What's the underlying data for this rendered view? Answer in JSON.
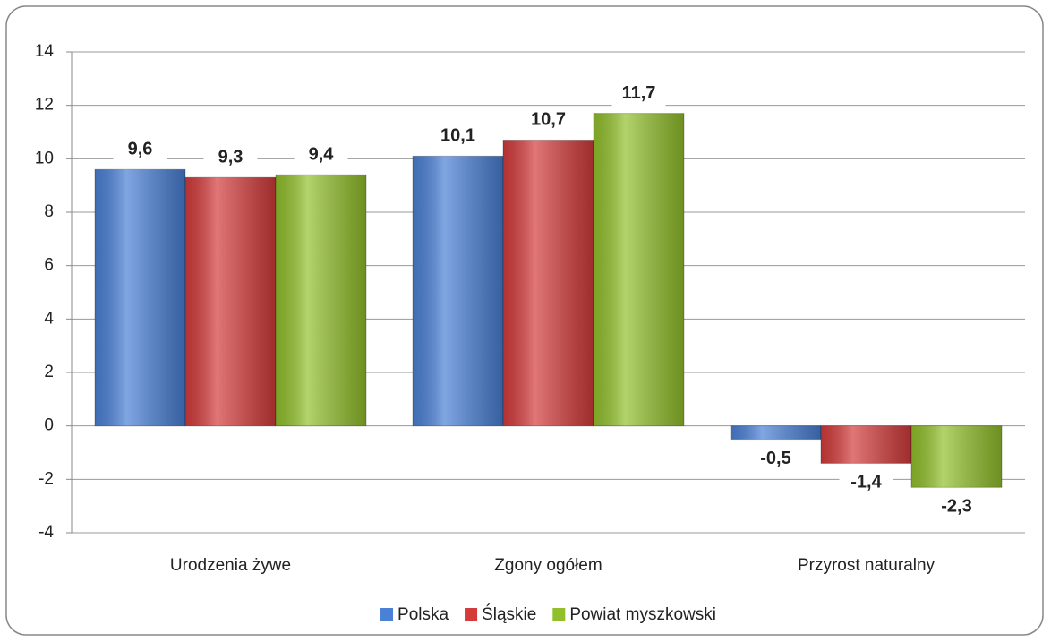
{
  "chart_data": {
    "type": "bar",
    "categories": [
      "Urodzenia żywe",
      "Zgony ogółem",
      "Przyrost naturalny"
    ],
    "series": [
      {
        "name": "Polska",
        "color": "#4a80d6",
        "values": [
          9.6,
          10.1,
          -0.5
        ],
        "value_labels": [
          "9,6",
          "10,1",
          "-0,5"
        ]
      },
      {
        "name": "Śląskie",
        "color": "#d43c3c",
        "values": [
          9.3,
          10.7,
          -1.4
        ],
        "value_labels": [
          "9,3",
          "10,7",
          "-1,4"
        ]
      },
      {
        "name": "Powiat myszkowski",
        "color": "#92c02c",
        "values": [
          9.4,
          11.7,
          -2.3
        ],
        "value_labels": [
          "9,4",
          "11,7",
          "-2,3"
        ]
      }
    ],
    "ylim": [
      -4,
      14
    ],
    "yticks": [
      -4,
      -2,
      0,
      2,
      4,
      6,
      8,
      10,
      12,
      14
    ],
    "grid": true,
    "legend": "bottom"
  }
}
